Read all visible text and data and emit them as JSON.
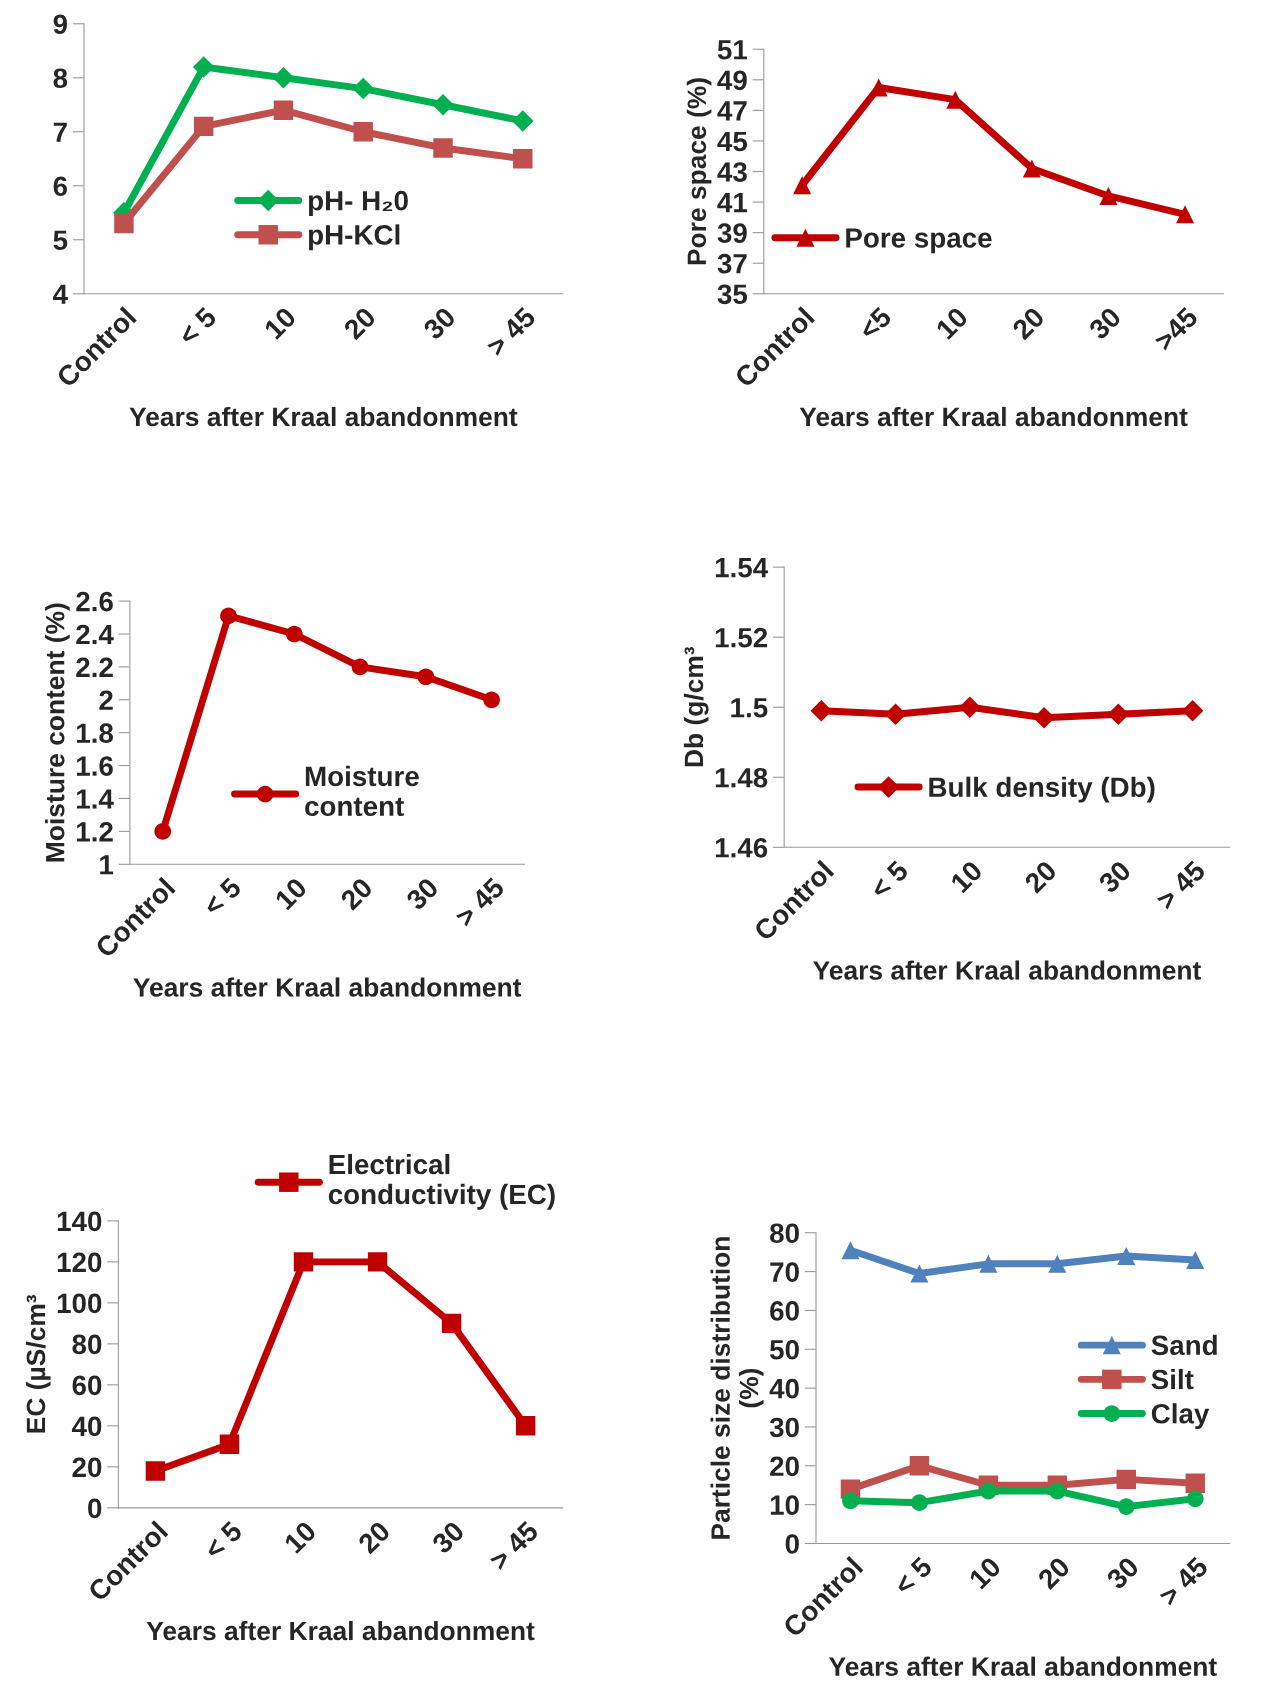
{
  "chart_data": [
    {
      "type": "line",
      "categories": [
        "Control",
        "< 5",
        "10",
        "20",
        "30",
        "> 45"
      ],
      "xlabel": "Years after Kraal abandonment",
      "ylim": [
        4,
        9
      ],
      "yticks": [
        4,
        5,
        6,
        7,
        8,
        9
      ],
      "legend": "lower center",
      "grid": false,
      "series": [
        {
          "name": "pH- H₂0",
          "color": "#00b050",
          "marker": "diamond",
          "values": [
            5.5,
            8.2,
            8.0,
            7.8,
            7.5,
            7.2
          ]
        },
        {
          "name": "pH-KCl",
          "color": "#c0504d",
          "marker": "square",
          "values": [
            5.3,
            7.1,
            7.4,
            7.0,
            6.7,
            6.5
          ]
        }
      ]
    },
    {
      "type": "line",
      "categories": [
        "Control",
        "<5",
        "10",
        "20",
        "30",
        ">45"
      ],
      "xlabel": "Years after Kraal abandonment",
      "ylabel": "Pore space (%)",
      "ylim": [
        35,
        51
      ],
      "yticks": [
        35,
        37,
        39,
        41,
        43,
        45,
        47,
        49,
        51
      ],
      "legend": "lower left",
      "grid": false,
      "series": [
        {
          "name": "Pore space",
          "color": "#c00000",
          "marker": "triangle",
          "values": [
            42.1,
            48.5,
            47.7,
            43.2,
            41.4,
            40.2
          ]
        }
      ]
    },
    {
      "type": "line",
      "categories": [
        "Control",
        "< 5",
        "10",
        "20",
        "30",
        "> 45"
      ],
      "xlabel": "Years after Kraal abandonment",
      "ylabel": "Moisture content (%)",
      "ylim": [
        1,
        2.6
      ],
      "yticks": [
        1,
        1.2,
        1.4,
        1.6,
        1.8,
        2,
        2.2,
        2.4,
        2.6
      ],
      "legend": "lower center",
      "grid": false,
      "series": [
        {
          "name": "Moisture\ncontent",
          "color": "#c00000",
          "marker": "circle",
          "values": [
            1.2,
            2.51,
            2.4,
            2.2,
            2.14,
            2.0
          ]
        }
      ]
    },
    {
      "type": "line",
      "categories": [
        "Control",
        "< 5",
        "10",
        "20",
        "30",
        "> 45"
      ],
      "xlabel": "Years after Kraal abandonment",
      "ylabel": "Db (g/cm³",
      "ylim": [
        1.46,
        1.54
      ],
      "yticks": [
        1.46,
        1.48,
        1.5,
        1.52,
        1.54
      ],
      "legend": "lower center",
      "grid": false,
      "series": [
        {
          "name": "Bulk density (Db)",
          "color": "#c00000",
          "marker": "diamond",
          "values": [
            1.499,
            1.498,
            1.5,
            1.497,
            1.498,
            1.499
          ]
        }
      ]
    },
    {
      "type": "line",
      "categories": [
        "Control",
        "< 5",
        "10",
        "20",
        "30",
        "> 45"
      ],
      "xlabel": "Years after Kraal abandonment",
      "ylabel": "EC (µS/cm³",
      "ylim": [
        0,
        140
      ],
      "yticks": [
        0,
        20,
        40,
        60,
        80,
        100,
        120,
        140
      ],
      "legend": "top",
      "grid": false,
      "series": [
        {
          "name": "Electrical\nconductivity (EC)",
          "color": "#c00000",
          "marker": "square",
          "values": [
            18,
            31,
            120,
            120,
            90,
            40
          ]
        }
      ]
    },
    {
      "type": "line",
      "categories": [
        "Control",
        "< 5",
        "10",
        "20",
        "30",
        "> 45"
      ],
      "xlabel": "Years after Kraal abandonment",
      "ylabel": "Particle size distribution\n(%)",
      "ylim": [
        0,
        80
      ],
      "yticks": [
        0,
        10,
        20,
        30,
        40,
        50,
        60,
        70,
        80
      ],
      "legend": "center right",
      "grid": false,
      "series": [
        {
          "name": "Sand",
          "color": "#4f81bd",
          "marker": "triangle",
          "values": [
            75.5,
            69.5,
            72,
            72,
            74,
            73
          ]
        },
        {
          "name": "Silt",
          "color": "#c0504d",
          "marker": "square",
          "values": [
            14,
            20,
            15,
            15,
            16.5,
            15.5
          ]
        },
        {
          "name": "Clay",
          "color": "#00b050",
          "marker": "circle",
          "values": [
            11,
            10.5,
            13.5,
            13.5,
            9.5,
            11.5
          ]
        }
      ]
    }
  ]
}
